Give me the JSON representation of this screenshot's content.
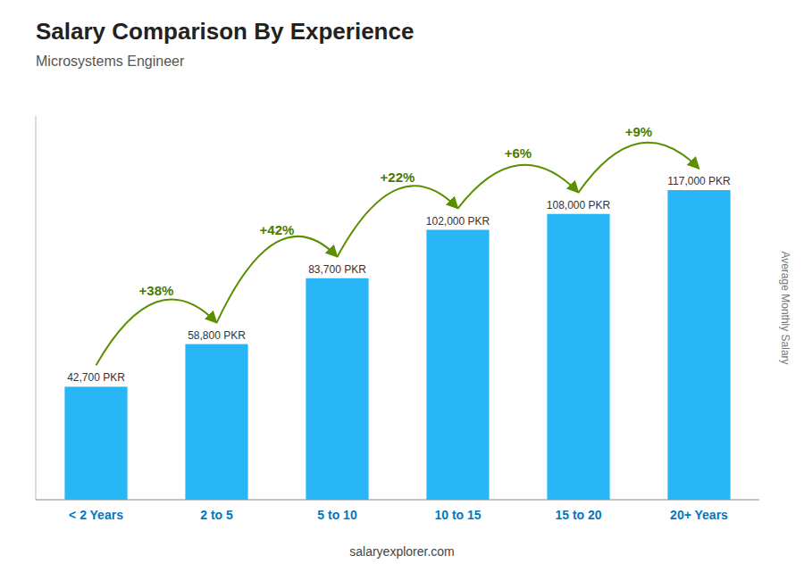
{
  "chart_data": {
    "type": "bar",
    "title": "Salary Comparison By Experience",
    "subtitle": "Microsystems Engineer",
    "categories": [
      "< 2 Years",
      "2 to 5",
      "5 to 10",
      "10 to 15",
      "15 to 20",
      "20+ Years"
    ],
    "values": [
      42700,
      58800,
      83700,
      102000,
      108000,
      117000
    ],
    "value_labels": [
      "42,700 PKR",
      "58,800 PKR",
      "83,700 PKR",
      "102,000 PKR",
      "108,000 PKR",
      "117,000 PKR"
    ],
    "data_labels": true,
    "annotations": [
      "+38%",
      "+42%",
      "+22%",
      "+6%",
      "+9%"
    ],
    "y_label": "Average Monthly Salary",
    "credit": "salaryexplorer.com",
    "color": "#29b6f6",
    "ylim": [
      0,
      145000
    ],
    "tick_labels": "x",
    "grid": false
  }
}
